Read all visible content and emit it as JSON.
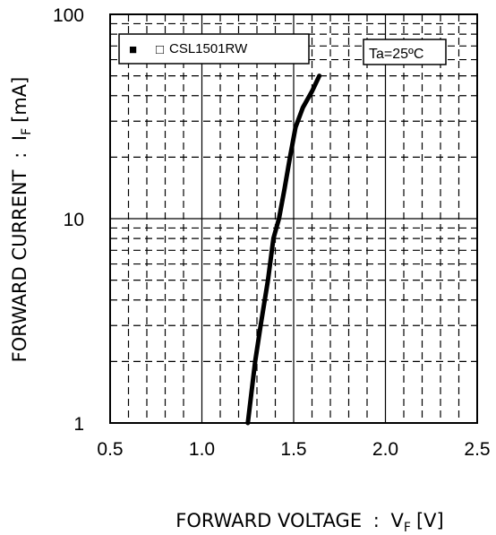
{
  "chart_data": {
    "type": "line",
    "xlabel": "FORWARD VOLTAGE",
    "xlabel_symbol": "V",
    "xlabel_subscript": "F",
    "xlabel_unit": "[V]",
    "ylabel": "FORWARD CURRENT",
    "ylabel_symbol": "I",
    "ylabel_subscript": "F",
    "ylabel_unit": "[mA]",
    "separator": ":",
    "xlim": [
      0.5,
      2.5
    ],
    "ylim": [
      1,
      100
    ],
    "y_scale": "log",
    "x_ticks": [
      "0.5",
      "1.0",
      "1.5",
      "2.0",
      "2.5"
    ],
    "y_ticks": [
      "1",
      "10",
      "100"
    ],
    "grid": true,
    "legend": {
      "placement": "top-left",
      "marker": "■",
      "entry_marker": "□",
      "entry_marker_color": "#e00000",
      "label": "CSL1501RW"
    },
    "annotation": "Ta=25ºC",
    "series": [
      {
        "name": "CSL1501RW",
        "color": "#000000",
        "x": [
          1.25,
          1.29,
          1.32,
          1.36,
          1.39,
          1.42,
          1.45,
          1.48,
          1.51,
          1.55,
          1.6,
          1.64
        ],
        "y": [
          1,
          2,
          3,
          5,
          8,
          10,
          14,
          20,
          28,
          35,
          42,
          50
        ]
      }
    ]
  }
}
